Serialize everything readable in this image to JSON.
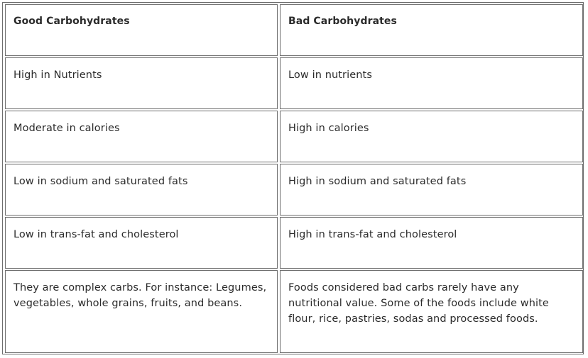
{
  "table": {
    "headers": {
      "good": "Good Carbohydrates",
      "bad": "Bad Carbohydrates"
    },
    "rows": [
      {
        "good": "High in Nutrients",
        "bad": "Low in nutrients"
      },
      {
        "good": "Moderate in calories",
        "bad": "High in calories"
      },
      {
        "good": "Low in sodium and saturated fats",
        "bad": "High in sodium and saturated fats"
      },
      {
        "good": "Low in trans-fat and cholesterol",
        "bad": "High in trans-fat and cholesterol"
      },
      {
        "good": "They are complex carbs. For instance: Legumes, vegetables, whole grains, fruits, and beans.",
        "bad": "Foods considered bad carbs rarely have any nutritional value. Some of the foods include white flour, rice, pastries, sodas and processed foods."
      }
    ]
  }
}
